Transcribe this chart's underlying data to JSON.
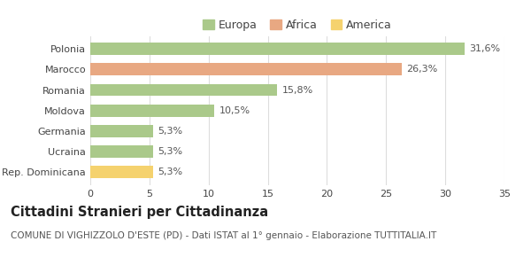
{
  "categories": [
    "Polonia",
    "Marocco",
    "Romania",
    "Moldova",
    "Germania",
    "Ucraina",
    "Rep. Dominicana"
  ],
  "values": [
    31.6,
    26.3,
    15.8,
    10.5,
    5.3,
    5.3,
    5.3
  ],
  "labels": [
    "31,6%",
    "26,3%",
    "15,8%",
    "10,5%",
    "5,3%",
    "5,3%",
    "5,3%"
  ],
  "colors": [
    "#aac98a",
    "#e8a882",
    "#aac98a",
    "#aac98a",
    "#aac98a",
    "#aac98a",
    "#f5d26e"
  ],
  "legend_items": [
    {
      "label": "Europa",
      "color": "#aac98a"
    },
    {
      "label": "Africa",
      "color": "#e8a882"
    },
    {
      "label": "America",
      "color": "#f5d26e"
    }
  ],
  "xlim": [
    0,
    35
  ],
  "xticks": [
    0,
    5,
    10,
    15,
    20,
    25,
    30,
    35
  ],
  "title": "Cittadini Stranieri per Cittadinanza",
  "subtitle": "COMUNE DI VIGHIZZOLO D'ESTE (PD) - Dati ISTAT al 1° gennaio - Elaborazione TUTTITALIA.IT",
  "title_fontsize": 10.5,
  "subtitle_fontsize": 7.5,
  "label_fontsize": 8,
  "tick_fontsize": 8,
  "bg_color": "#ffffff",
  "grid_color": "#dddddd"
}
